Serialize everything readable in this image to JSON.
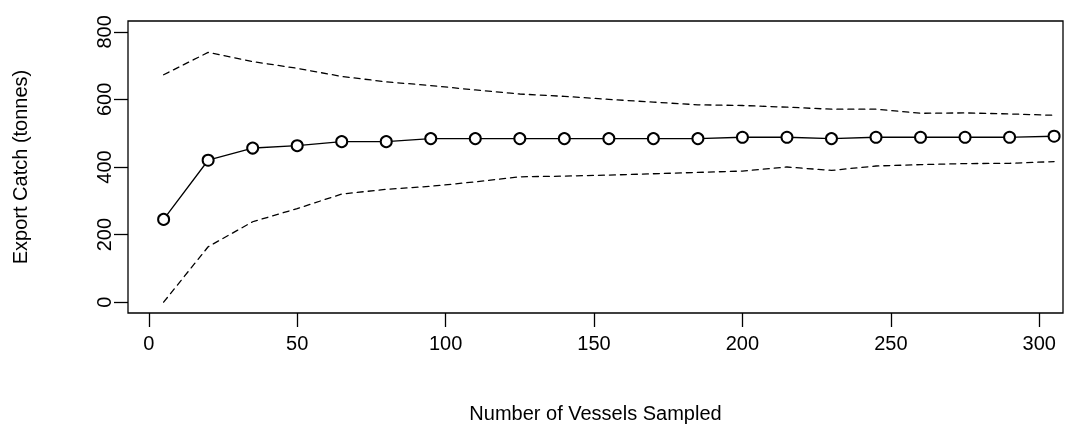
{
  "chart_data": {
    "type": "line",
    "xlabel": "Number of Vessels Sampled",
    "ylabel": "Export Catch (tonnes)",
    "x": [
      5,
      20,
      35,
      50,
      65,
      80,
      95,
      110,
      125,
      140,
      155,
      170,
      185,
      200,
      215,
      230,
      245,
      260,
      275,
      290,
      305
    ],
    "series": [
      {
        "color": "#000000",
        "values": [
          245,
          420,
          456,
          463,
          475,
          475,
          484,
          484,
          484,
          484,
          484,
          484,
          484,
          488,
          488,
          484,
          488,
          488,
          488,
          488,
          491
        ]
      },
      {
        "color": "#000000",
        "marker": "none",
        "line_style": "dashed",
        "values": [
          673,
          739,
          712,
          692,
          668,
          652,
          641,
          628,
          616,
          609,
          600,
          592,
          584,
          582,
          577,
          571,
          571,
          559,
          560,
          557,
          553
        ]
      },
      {
        "color": "#000000",
        "marker": "none",
        "line_style": "dashed",
        "values": [
          0,
          164,
          238,
          277,
          320,
          334,
          343,
          356,
          371,
          373,
          376,
          380,
          384,
          388,
          400,
          390,
          403,
          407,
          410,
          411,
          416
        ]
      }
    ],
    "xlim": [
      -7,
      308
    ],
    "xticks": [
      0,
      50,
      100,
      150,
      200,
      250,
      300
    ],
    "ylim": [
      -32,
      832
    ],
    "yticks": [
      0,
      200,
      400,
      600,
      800
    ],
    "grid": false,
    "marker": "circle",
    "line_style": "solid"
  }
}
